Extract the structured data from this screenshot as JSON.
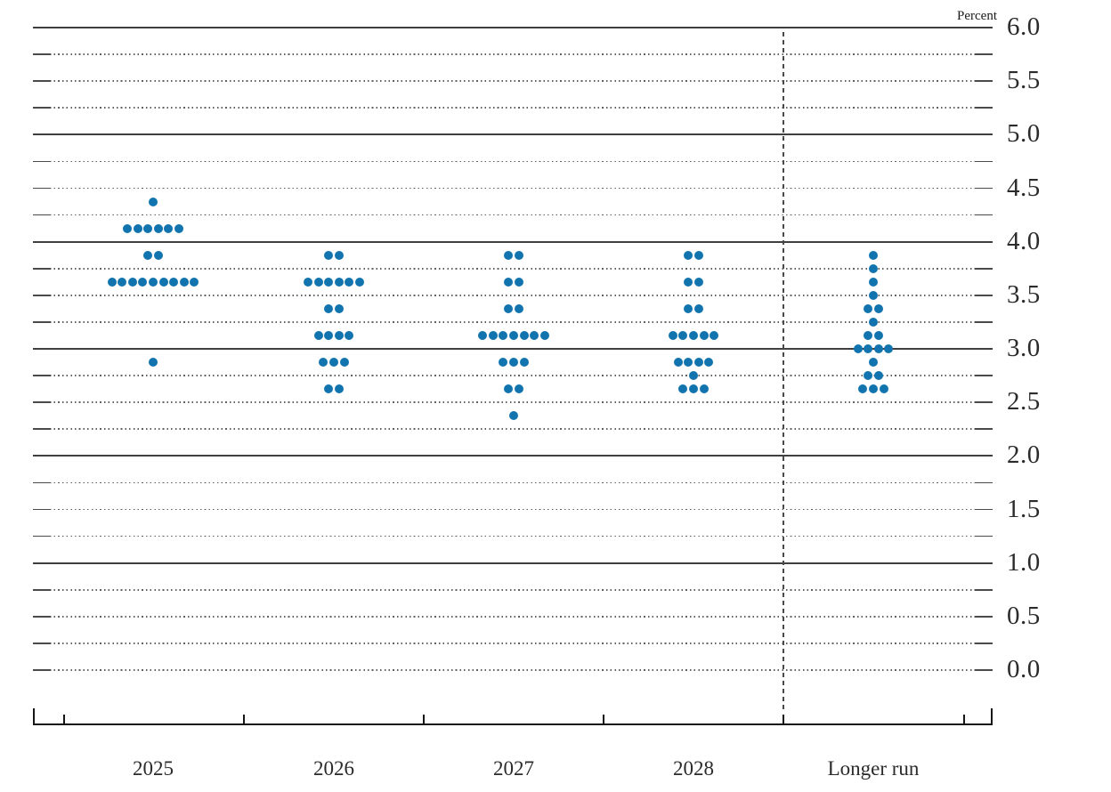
{
  "chart_data": {
    "type": "scatter",
    "subtype": "fomc-dot-plot",
    "ylabel": "Percent",
    "xlabel": "",
    "grid": "on",
    "legend": "none",
    "categories": [
      "2025",
      "2026",
      "2027",
      "2028",
      "Longer run"
    ],
    "y_axis": {
      "min": 0.0,
      "max": 6.0,
      "gridline_interval": 0.25,
      "label_interval": 0.5,
      "solid_gridlines": [
        1.0,
        2.0,
        3.0,
        4.0,
        5.0,
        6.0
      ],
      "tick_labels": [
        "6.0",
        "5.5",
        "5.0",
        "4.5",
        "4.0",
        "3.5",
        "3.0",
        "2.5",
        "2.0",
        "1.5",
        "1.0",
        "0.5",
        "0.0"
      ]
    },
    "separator": {
      "style": "dashed-vertical-line",
      "between": [
        "2028",
        "Longer run"
      ]
    },
    "series": [
      {
        "name": "2025",
        "dots": [
          {
            "rate": 4.375,
            "count": 1
          },
          {
            "rate": 4.125,
            "count": 6
          },
          {
            "rate": 3.875,
            "count": 2
          },
          {
            "rate": 3.625,
            "count": 9
          },
          {
            "rate": 2.875,
            "count": 1
          }
        ]
      },
      {
        "name": "2026",
        "dots": [
          {
            "rate": 3.875,
            "count": 2
          },
          {
            "rate": 3.625,
            "count": 6
          },
          {
            "rate": 3.375,
            "count": 2
          },
          {
            "rate": 3.125,
            "count": 4
          },
          {
            "rate": 2.875,
            "count": 3
          },
          {
            "rate": 2.625,
            "count": 2
          }
        ]
      },
      {
        "name": "2027",
        "dots": [
          {
            "rate": 3.875,
            "count": 2
          },
          {
            "rate": 3.625,
            "count": 2
          },
          {
            "rate": 3.375,
            "count": 2
          },
          {
            "rate": 3.125,
            "count": 7
          },
          {
            "rate": 2.875,
            "count": 3
          },
          {
            "rate": 2.625,
            "count": 2
          },
          {
            "rate": 2.375,
            "count": 1
          }
        ]
      },
      {
        "name": "2028",
        "dots": [
          {
            "rate": 3.875,
            "count": 2
          },
          {
            "rate": 3.625,
            "count": 2
          },
          {
            "rate": 3.375,
            "count": 2
          },
          {
            "rate": 3.125,
            "count": 5
          },
          {
            "rate": 2.875,
            "count": 4
          },
          {
            "rate": 2.75,
            "count": 1
          },
          {
            "rate": 2.625,
            "count": 3
          }
        ]
      },
      {
        "name": "Longer run",
        "dots": [
          {
            "rate": 3.875,
            "count": 1
          },
          {
            "rate": 3.75,
            "count": 1
          },
          {
            "rate": 3.625,
            "count": 1
          },
          {
            "rate": 3.5,
            "count": 1
          },
          {
            "rate": 3.375,
            "count": 2
          },
          {
            "rate": 3.25,
            "count": 1
          },
          {
            "rate": 3.125,
            "count": 2
          },
          {
            "rate": 3.0,
            "count": 4
          },
          {
            "rate": 2.875,
            "count": 1
          },
          {
            "rate": 2.75,
            "count": 2
          },
          {
            "rate": 2.625,
            "count": 3
          }
        ]
      }
    ],
    "colors": {
      "dot": "#1274ae",
      "solid_gridline": "#3f3f3f",
      "dotted_gridline": "#606060",
      "axis": "#161616",
      "text": "#2b2b2b"
    }
  }
}
